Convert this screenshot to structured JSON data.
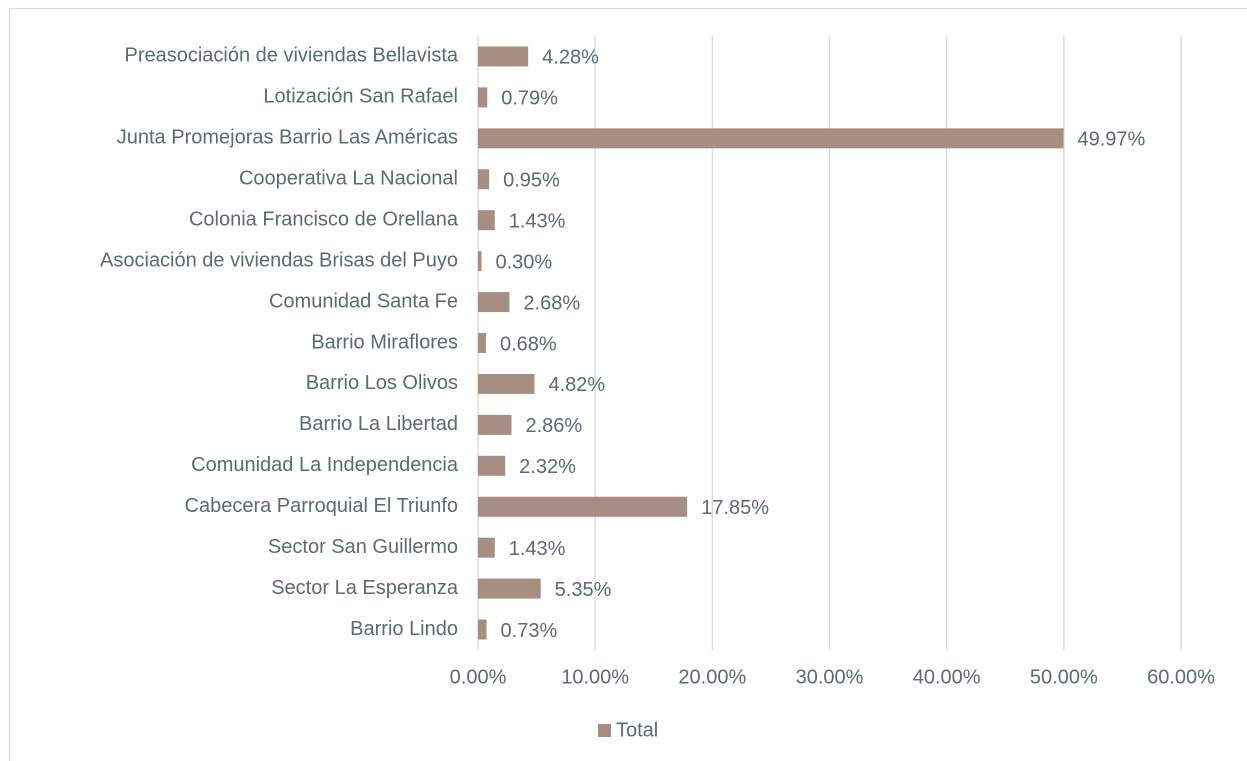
{
  "chart_data": {
    "type": "bar",
    "orientation": "horizontal",
    "categories": [
      "Preasociación de viviendas Bellavista",
      "Lotización San Rafael",
      "Junta Promejoras Barrio Las Américas",
      "Cooperativa La Nacional",
      "Colonia Francisco de Orellana",
      "Asociación de viviendas Brisas del Puyo",
      "Comunidad Santa Fe",
      "Barrio Miraflores",
      "Barrio Los Olivos",
      "Barrio La Libertad",
      "Comunidad La Independencia",
      "Cabecera Parroquial El Triunfo",
      "Sector San Guillermo",
      "Sector La Esperanza",
      "Barrio Lindo"
    ],
    "series": [
      {
        "name": "Total",
        "color": "#a68e82",
        "values": [
          4.28,
          0.79,
          49.97,
          0.95,
          1.43,
          0.3,
          2.68,
          0.68,
          4.82,
          2.86,
          2.32,
          17.85,
          1.43,
          5.35,
          0.73
        ],
        "value_labels": [
          "4.28%",
          "0.79%",
          "49.97%",
          "0.95%",
          "1.43%",
          "0.30%",
          "2.68%",
          "0.68%",
          "4.82%",
          "2.86%",
          "2.32%",
          "17.85%",
          "1.43%",
          "5.35%",
          "0.73%"
        ]
      }
    ],
    "xlim": [
      0,
      60
    ],
    "xticks": [
      {
        "value": 0,
        "label": "0.00%"
      },
      {
        "value": 10,
        "label": "10.00%"
      },
      {
        "value": 20,
        "label": "20.00%"
      },
      {
        "value": 30,
        "label": "30.00%"
      },
      {
        "value": 40,
        "label": "40.00%"
      },
      {
        "value": 50,
        "label": "50.00%"
      },
      {
        "value": 60,
        "label": "60.00%"
      }
    ],
    "grid": true,
    "legend": "bottom"
  }
}
